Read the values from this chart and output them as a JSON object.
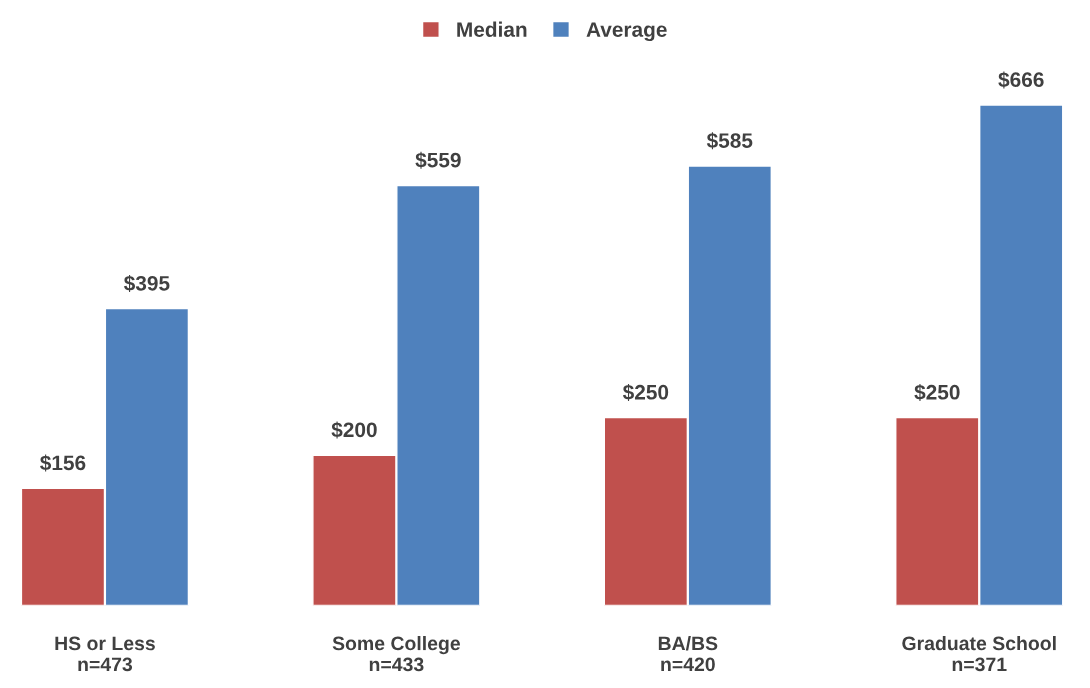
{
  "chart_data": {
    "type": "bar",
    "categories": [
      "HS or Less\nn=473",
      "Some College\nn=433",
      "BA/BS\nn=420",
      "Graduate School\nn=371"
    ],
    "series": [
      {
        "name": "Median",
        "color": "#c0504d",
        "values": [
          156,
          200,
          250,
          250
        ],
        "value_labels": [
          "$156",
          "$200",
          "$250",
          "$250"
        ]
      },
      {
        "name": "Average",
        "color": "#4f81bd",
        "values": [
          395,
          559,
          585,
          666
        ],
        "value_labels": [
          "$395",
          "$559",
          "$585",
          "$666"
        ]
      }
    ],
    "grid": false,
    "legend": "top"
  }
}
